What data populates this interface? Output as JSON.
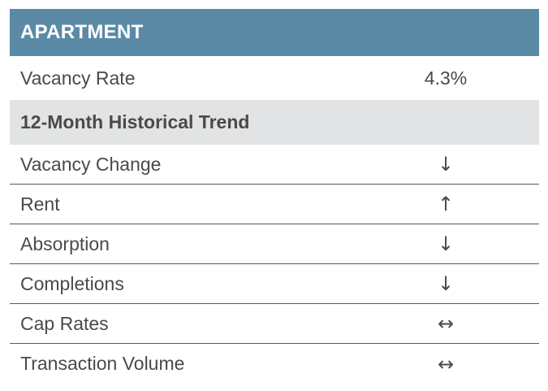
{
  "header": {
    "title": "APARTMENT"
  },
  "summary": {
    "label": "Vacancy Rate",
    "value": "4.3%"
  },
  "section": {
    "title": "12-Month Historical Trend"
  },
  "trends": [
    {
      "label": "Vacancy Change",
      "direction": "down",
      "glyph": "↓"
    },
    {
      "label": "Rent",
      "direction": "up",
      "glyph": "↑"
    },
    {
      "label": "Absorption",
      "direction": "down",
      "glyph": "↓"
    },
    {
      "label": "Completions",
      "direction": "down",
      "glyph": "↓"
    },
    {
      "label": "Cap Rates",
      "direction": "flat",
      "glyph": "↔"
    },
    {
      "label": "Transaction Volume",
      "direction": "flat",
      "glyph": "↔"
    }
  ],
  "colors": {
    "header_bg": "#5b8aa6",
    "section_bg": "#e2e3e4",
    "text": "#4a4a4a"
  }
}
